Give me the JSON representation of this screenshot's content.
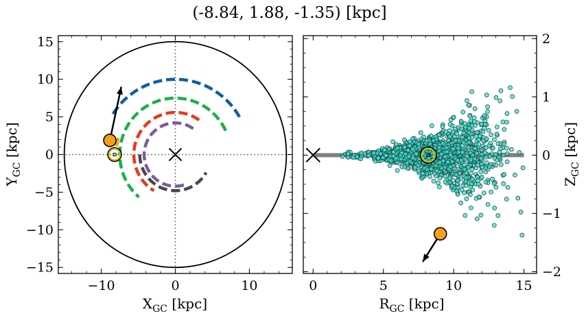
{
  "title": "(-8.84, 1.88, -1.35) [kpc]",
  "chart_data": [
    {
      "type": "scatter",
      "xlabel": "X",
      "xlabel_sub": "GC",
      "xlabel_unit": " [kpc]",
      "ylabel": "Y",
      "ylabel_sub": "GC",
      "ylabel_unit": " [kpc]",
      "xlim": [
        -15.8,
        15.8
      ],
      "ylim": [
        -15.8,
        15.8
      ],
      "xticks": [
        {
          "v": -10,
          "label": "−10"
        },
        {
          "v": 0,
          "label": "0"
        },
        {
          "v": 10,
          "label": "10"
        }
      ],
      "yticks": [
        {
          "v": -15,
          "label": "−15"
        },
        {
          "v": -10,
          "label": "−10"
        },
        {
          "v": -5,
          "label": "−5"
        },
        {
          "v": 0,
          "label": "0"
        },
        {
          "v": 5,
          "label": "5"
        },
        {
          "v": 10,
          "label": "10"
        },
        {
          "v": 15,
          "label": "15"
        }
      ],
      "boundary_radius": 15,
      "galactic_center": [
        0,
        0
      ],
      "sun_position": [
        -8.2,
        0
      ],
      "star_position": [
        -8.84,
        1.88
      ],
      "velocity_arrow_end": [
        -7.3,
        9.0
      ],
      "arms": [
        {
          "color": "#0f5fa0",
          "radius": 10.0,
          "theta_deg": [
            30,
            150
          ]
        },
        {
          "color": "#f5a011",
          "radius": 8.0,
          "theta_deg": [
            164,
            172
          ]
        },
        {
          "color": "#1ab04c",
          "radius": 7.5,
          "theta_deg": [
            25,
            230
          ]
        },
        {
          "color": "#e8381a",
          "radius": 5.6,
          "theta_deg": [
            55,
            240
          ]
        },
        {
          "color": "#7b5ba0",
          "radius": 4.2,
          "theta_deg": [
            55,
            290
          ]
        },
        {
          "color": "#474747",
          "radius": 4.8,
          "theta_deg": [
            180,
            330
          ]
        }
      ]
    },
    {
      "type": "scatter",
      "xlabel": "R",
      "xlabel_sub": "GC",
      "xlabel_unit": " [kpc]",
      "ylabel": "Z",
      "ylabel_sub": "GC",
      "ylabel_unit": " [kpc]",
      "xlim": [
        -0.7,
        15.9
      ],
      "ylim": [
        -2.03,
        2.05
      ],
      "xticks": [
        {
          "v": 0,
          "label": "0"
        },
        {
          "v": 5,
          "label": "5"
        },
        {
          "v": 10,
          "label": "10"
        },
        {
          "v": 15,
          "label": "15"
        }
      ],
      "yticks": [
        {
          "v": -2,
          "label": "−2"
        },
        {
          "v": -1,
          "label": "−1"
        },
        {
          "v": 0,
          "label": "0"
        },
        {
          "v": 1,
          "label": "1"
        },
        {
          "v": 2,
          "label": "2"
        }
      ],
      "disk_band": {
        "x": [
          0,
          15
        ],
        "z": 0,
        "color": "#808080"
      },
      "galactic_center": [
        0,
        0
      ],
      "sun_position": [
        8.2,
        0
      ],
      "star_position": [
        9.05,
        -1.35
      ],
      "velocity_arrow_end": [
        7.8,
        -1.83
      ],
      "scatter_color": "#40e0d0",
      "n_points": 1400,
      "distribution": "flaring disk, R 2–15 kpc, |Z| up to ~1.2 kpc, densest near R 6–11"
    }
  ]
}
